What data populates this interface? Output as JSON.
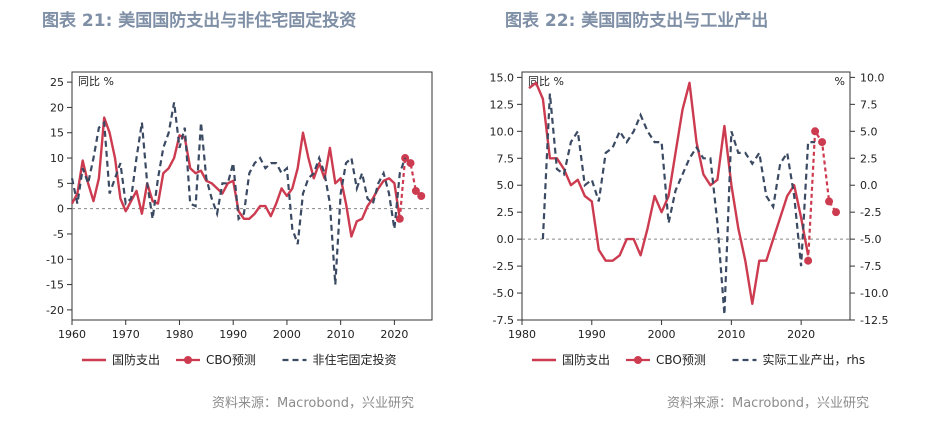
{
  "left": {
    "title": "图表 21: 美国国防支出与非住宅固定投资",
    "source": "资料来源：Macrobond，兴业研究",
    "unit_label": "同比 %",
    "legend": [
      "国防支出",
      "CBO预测",
      "非住宅固定投资"
    ]
  },
  "right": {
    "title": "图表 22: 美国国防支出与工业产出",
    "source": "资料来源：Macrobond，兴业研究",
    "unit_label_left": "同比 %",
    "unit_label_right": "%",
    "legend": [
      "国防支出",
      "CBO预测",
      "实际工业产出，rhs"
    ]
  },
  "colors": {
    "defense": "#cc3b4f",
    "cbo": "#cc3b4f",
    "dashed": "#3b4a63",
    "zero": "#888888"
  },
  "chart_data": [
    {
      "type": "line",
      "title": "图表 21: 美国国防支出与非住宅固定投资",
      "ylabel": "同比 %",
      "xlim": [
        1960,
        2027
      ],
      "ylim": [
        -22,
        27
      ],
      "xticks": [
        1960,
        1970,
        1980,
        1990,
        2000,
        2010,
        2020
      ],
      "yticks": [
        -20,
        -15,
        -10,
        -5,
        0,
        5,
        10,
        15,
        20,
        25
      ],
      "series": [
        {
          "name": "国防支出",
          "style": "solid",
          "x": [
            1960,
            1961,
            1962,
            1963,
            1964,
            1965,
            1966,
            1967,
            1968,
            1969,
            1970,
            1971,
            1972,
            1973,
            1974,
            1975,
            1976,
            1977,
            1978,
            1979,
            1980,
            1981,
            1982,
            1983,
            1984,
            1985,
            1986,
            1987,
            1988,
            1989,
            1990,
            1991,
            1992,
            1993,
            1994,
            1995,
            1996,
            1997,
            1998,
            1999,
            2000,
            2001,
            2002,
            2003,
            2004,
            2005,
            2006,
            2007,
            2008,
            2009,
            2010,
            2011,
            2012,
            2013,
            2014,
            2015,
            2016,
            2017,
            2018,
            2019,
            2020,
            2021
          ],
          "y": [
            1,
            3,
            9.5,
            5,
            1.5,
            6,
            18,
            15,
            10,
            2,
            -0.5,
            1.5,
            3.5,
            -1,
            5,
            1.5,
            1,
            7,
            8,
            10,
            14.5,
            14,
            8,
            7,
            7.5,
            5.5,
            5,
            4,
            3,
            5,
            5.5,
            -0.5,
            -2,
            -2,
            -1,
            0.5,
            0.5,
            -1.5,
            1,
            4,
            2.5,
            4,
            8,
            15,
            10,
            6,
            9,
            6,
            12,
            5,
            6,
            1,
            -5.5,
            -2.5,
            -2,
            0.5,
            2,
            4,
            5.5,
            6,
            5,
            -2
          ]
        },
        {
          "name": "CBO预测",
          "style": "dotted",
          "x": [
            2021,
            2022,
            2023,
            2024,
            2025
          ],
          "y": [
            -2,
            10,
            9,
            3.5,
            2.5
          ]
        },
        {
          "name": "非住宅固定投资",
          "style": "dashed",
          "x": [
            1960,
            1961,
            1962,
            1963,
            1964,
            1965,
            1966,
            1967,
            1968,
            1969,
            1970,
            1971,
            1972,
            1973,
            1974,
            1975,
            1976,
            1977,
            1978,
            1979,
            1980,
            1981,
            1982,
            1983,
            1984,
            1985,
            1986,
            1987,
            1988,
            1989,
            1990,
            1991,
            1992,
            1993,
            1994,
            1995,
            1996,
            1997,
            1998,
            1999,
            2000,
            2001,
            2002,
            2003,
            2004,
            2005,
            2006,
            2007,
            2008,
            2009,
            2010,
            2011,
            2012,
            2013,
            2014,
            2015,
            2016,
            2017,
            2018,
            2019,
            2020,
            2021,
            2022
          ],
          "y": [
            6,
            1,
            8,
            5,
            10,
            16,
            17,
            3,
            6,
            9,
            1,
            2,
            10,
            17,
            5,
            -2,
            6,
            12,
            15,
            21,
            12,
            16,
            1,
            0.5,
            17,
            6,
            2,
            -1,
            5,
            5,
            9,
            -2,
            -1,
            7,
            9,
            10,
            8,
            9,
            9,
            7,
            8,
            -4,
            -7,
            3,
            6,
            7,
            10,
            7,
            1,
            -15,
            3,
            9,
            10,
            4,
            7,
            2,
            1,
            5,
            7,
            3,
            -4,
            7,
            10
          ]
        }
      ]
    },
    {
      "type": "line",
      "title": "图表 22: 美国国防支出与工业产出",
      "ylabel": "同比 %",
      "ylabel_right": "%",
      "xlim": [
        1980,
        2027
      ],
      "ylim": [
        -7.5,
        15.5
      ],
      "ylim_right": [
        -12.5,
        10.5
      ],
      "xticks": [
        1980,
        1990,
        2000,
        2010,
        2020
      ],
      "yticks": [
        -7.5,
        -5.0,
        -2.5,
        0.0,
        2.5,
        5.0,
        7.5,
        10.0,
        12.5,
        15.0
      ],
      "yticks_right": [
        -12.5,
        -10.0,
        -7.5,
        -5.0,
        -2.5,
        0.0,
        2.5,
        5.0,
        7.5,
        10.0
      ],
      "series": [
        {
          "name": "国防支出",
          "style": "solid",
          "axis": "left",
          "x": [
            1981,
            1982,
            1983,
            1984,
            1985,
            1986,
            1987,
            1988,
            1989,
            1990,
            1991,
            1992,
            1993,
            1994,
            1995,
            1996,
            1997,
            1998,
            1999,
            2000,
            2001,
            2002,
            2003,
            2004,
            2005,
            2006,
            2007,
            2008,
            2009,
            2010,
            2011,
            2012,
            2013,
            2014,
            2015,
            2016,
            2017,
            2018,
            2019,
            2020,
            2021
          ],
          "y": [
            14,
            14.5,
            13,
            7.5,
            7.5,
            6.5,
            5,
            5.5,
            4,
            3.5,
            -1,
            -2,
            -2,
            -1.5,
            0,
            0,
            -1.5,
            1,
            4,
            2.5,
            4,
            8,
            12,
            14.5,
            9,
            6,
            5,
            5.5,
            10.5,
            5,
            1,
            -2,
            -6,
            -2,
            -2,
            0,
            2,
            4,
            5,
            2,
            -1.5
          ]
        },
        {
          "name": "CBO预测",
          "style": "dotted",
          "axis": "left",
          "x": [
            2021,
            2022,
            2023,
            2024,
            2025
          ],
          "y": [
            -2,
            10,
            9,
            3.5,
            2.5
          ]
        },
        {
          "name": "实际工业产出，rhs",
          "style": "dashed",
          "axis": "right",
          "x": [
            1983,
            1984,
            1985,
            1986,
            1987,
            1988,
            1989,
            1990,
            1991,
            1992,
            1993,
            1994,
            1995,
            1996,
            1997,
            1998,
            1999,
            2000,
            2001,
            2002,
            2003,
            2004,
            2005,
            2006,
            2007,
            2008,
            2009,
            2010,
            2011,
            2012,
            2013,
            2014,
            2015,
            2016,
            2017,
            2018,
            2019,
            2020,
            2021,
            2022
          ],
          "y": [
            -5,
            8.5,
            1.5,
            1,
            4,
            5,
            0,
            0.5,
            -1.5,
            3,
            3.5,
            5,
            4,
            5,
            6.5,
            5,
            4,
            4,
            -3.5,
            -0.5,
            1,
            2.5,
            3.5,
            2.5,
            2.5,
            -3.5,
            -12,
            5,
            3,
            3,
            2,
            3,
            -1,
            -2,
            2,
            3,
            -1,
            -7.5,
            4,
            4
          ]
        }
      ]
    }
  ]
}
